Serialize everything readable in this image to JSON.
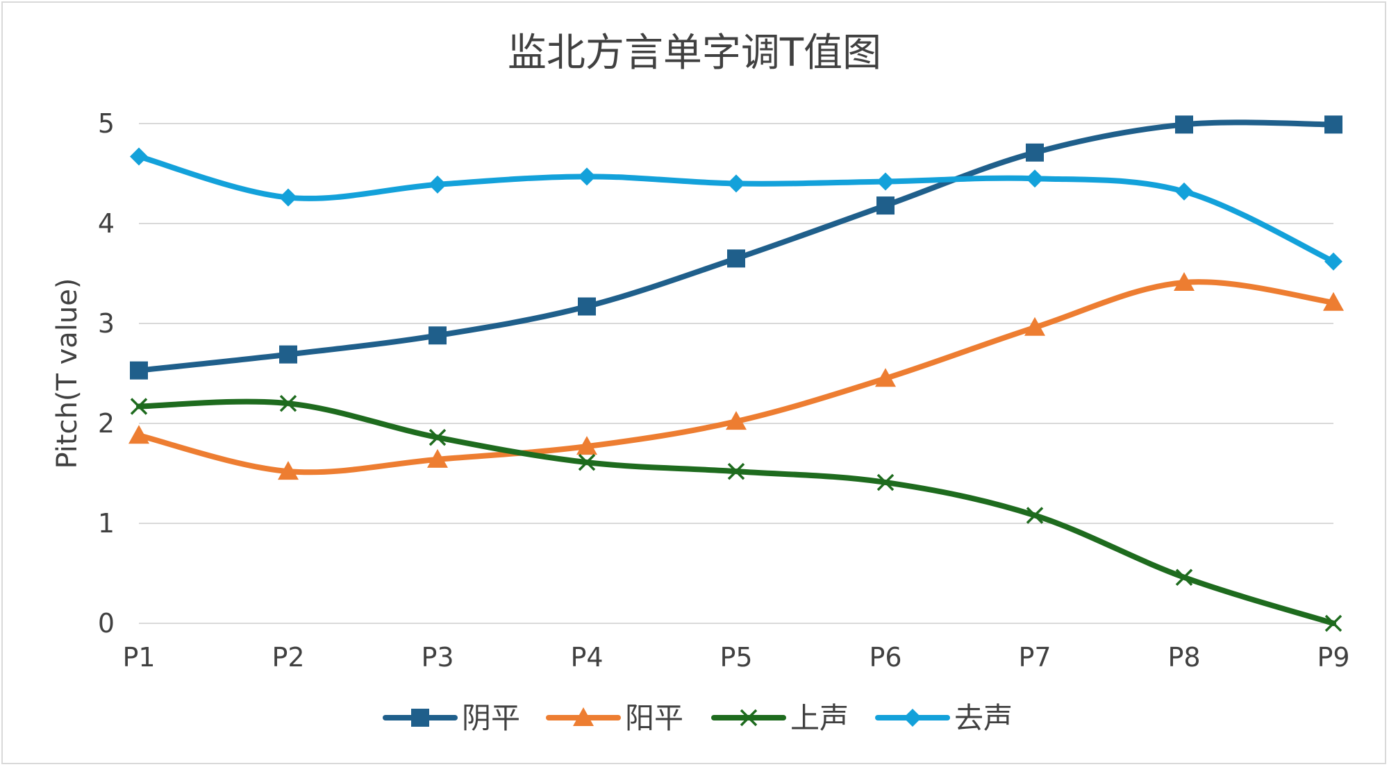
{
  "chart_data": {
    "type": "line",
    "title": "监北方言单字调T值图",
    "xlabel": "",
    "ylabel": "Pitch(T value)",
    "categories": [
      "P1",
      "P2",
      "P3",
      "P4",
      "P5",
      "P6",
      "P7",
      "P8",
      "P9"
    ],
    "ylim": [
      0,
      5
    ],
    "yticks": [
      0,
      1,
      2,
      3,
      4,
      5
    ],
    "grid": true,
    "legend": "bottom",
    "series": [
      {
        "name": "阴平",
        "color": "#1f5f8b",
        "marker": "square",
        "values": [
          2.53,
          2.69,
          2.88,
          3.17,
          3.65,
          4.18,
          4.71,
          4.99,
          4.99
        ]
      },
      {
        "name": "阳平",
        "color": "#ed7d31",
        "marker": "triangle",
        "values": [
          1.88,
          1.52,
          1.64,
          1.77,
          2.02,
          2.45,
          2.96,
          3.41,
          3.21
        ]
      },
      {
        "name": "上声",
        "color": "#1e6b1e",
        "marker": "x",
        "values": [
          2.17,
          2.2,
          1.86,
          1.61,
          1.52,
          1.41,
          1.08,
          0.46,
          0.0
        ]
      },
      {
        "name": "去声",
        "color": "#13a1da",
        "marker": "diamond",
        "values": [
          4.67,
          4.26,
          4.39,
          4.47,
          4.4,
          4.42,
          4.45,
          4.32,
          3.62
        ]
      }
    ]
  }
}
